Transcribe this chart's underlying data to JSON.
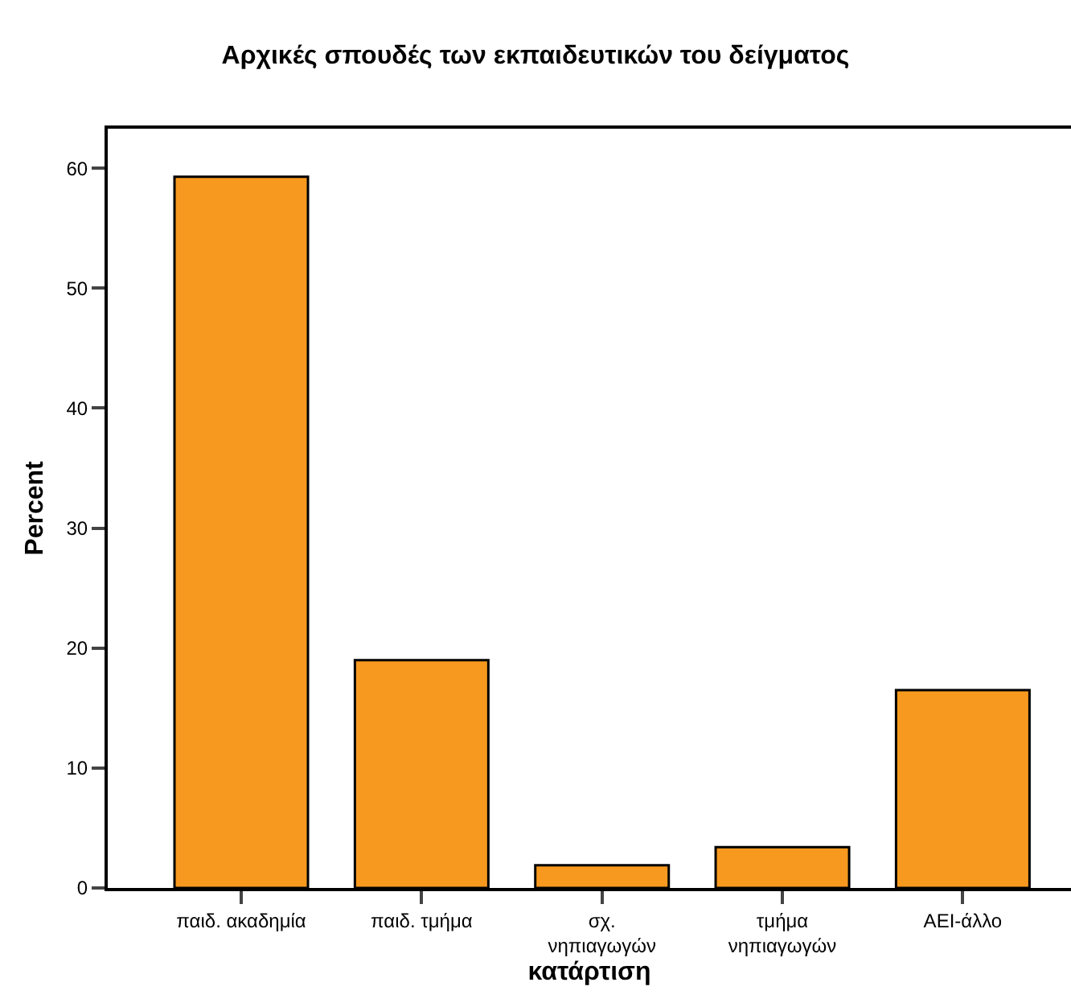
{
  "chart_data": {
    "type": "bar",
    "title": "Αρχικές σπουδές των εκπαιδευτικών του δείγματος",
    "xlabel": "κατάρτιση",
    "ylabel": "Percent",
    "categories": [
      "παιδ. ακαδημία",
      "παιδ. τμήμα",
      "σχ.\nνηπιαγωγών",
      "τμήμα\nνηπιαγωγών",
      "ΑΕΙ-άλλο"
    ],
    "values": [
      59.3,
      19.0,
      1.9,
      3.4,
      16.5
    ],
    "color": "#f7991f",
    "ylim": [
      0,
      63.3
    ],
    "yticks": [
      0,
      10,
      20,
      30,
      40,
      50,
      60
    ]
  }
}
